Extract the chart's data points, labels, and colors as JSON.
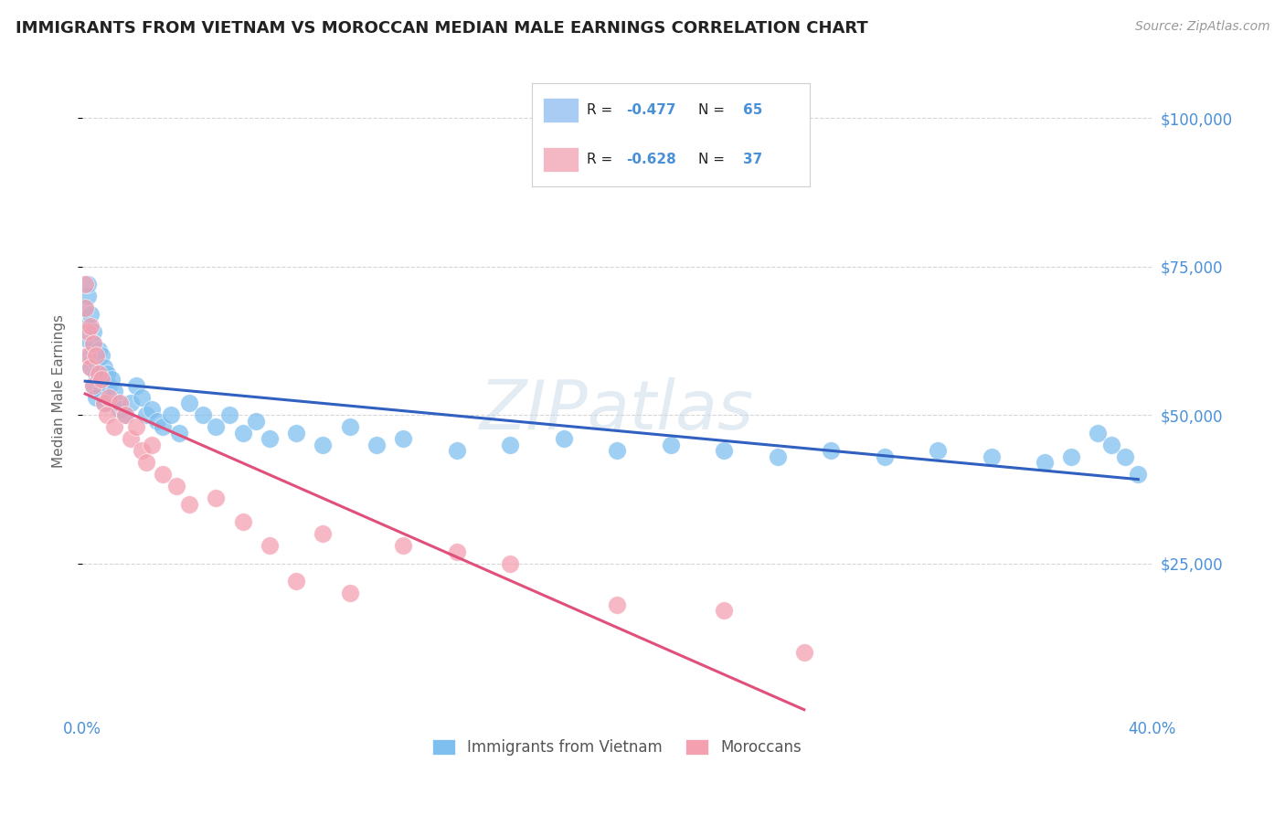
{
  "title": "IMMIGRANTS FROM VIETNAM VS MOROCCAN MEDIAN MALE EARNINGS CORRELATION CHART",
  "source": "Source: ZipAtlas.com",
  "ylabel": "Median Male Earnings",
  "ytick_values": [
    25000,
    50000,
    75000,
    100000
  ],
  "ytick_labels_right": [
    "$25,000",
    "$50,000",
    "$75,000",
    "$100,000"
  ],
  "watermark": "ZIPatlas",
  "legend_bottom": [
    "Immigrants from Vietnam",
    "Moroccans"
  ],
  "vietnam_color": "#7fbfef",
  "morocco_color": "#f4a0b0",
  "vietnam_line_color": "#3060c0",
  "morocco_line_color": "#e0507a",
  "legend_vietnam_fill": "#a8ccf4",
  "legend_morocco_fill": "#f4b8c4",
  "background_color": "#ffffff",
  "grid_color": "#cccccc",
  "title_color": "#222222",
  "axis_label_color": "#4a90d9",
  "vietnam_r": "-0.477",
  "vietnam_n": "65",
  "morocco_r": "-0.628",
  "morocco_n": "37",
  "vietnam_points_x": [
    0.001,
    0.001,
    0.002,
    0.002,
    0.002,
    0.003,
    0.003,
    0.003,
    0.004,
    0.004,
    0.004,
    0.005,
    0.005,
    0.005,
    0.006,
    0.006,
    0.007,
    0.007,
    0.008,
    0.008,
    0.009,
    0.01,
    0.011,
    0.012,
    0.013,
    0.014,
    0.016,
    0.018,
    0.02,
    0.022,
    0.024,
    0.026,
    0.028,
    0.03,
    0.033,
    0.036,
    0.04,
    0.045,
    0.05,
    0.055,
    0.06,
    0.065,
    0.07,
    0.08,
    0.09,
    0.1,
    0.11,
    0.12,
    0.14,
    0.16,
    0.18,
    0.2,
    0.22,
    0.24,
    0.26,
    0.28,
    0.3,
    0.32,
    0.34,
    0.36,
    0.37,
    0.38,
    0.385,
    0.39,
    0.395
  ],
  "vietnam_points_y": [
    63000,
    68000,
    70000,
    72000,
    65000,
    67000,
    60000,
    58000,
    64000,
    62000,
    55000,
    59000,
    57000,
    53000,
    61000,
    56000,
    60000,
    54000,
    58000,
    52000,
    57000,
    55000,
    56000,
    54000,
    52000,
    51000,
    50000,
    52000,
    55000,
    53000,
    50000,
    51000,
    49000,
    48000,
    50000,
    47000,
    52000,
    50000,
    48000,
    50000,
    47000,
    49000,
    46000,
    47000,
    45000,
    48000,
    45000,
    46000,
    44000,
    45000,
    46000,
    44000,
    45000,
    44000,
    43000,
    44000,
    43000,
    44000,
    43000,
    42000,
    43000,
    47000,
    45000,
    43000,
    40000
  ],
  "morocco_points_x": [
    0.001,
    0.001,
    0.002,
    0.002,
    0.003,
    0.003,
    0.004,
    0.004,
    0.005,
    0.006,
    0.007,
    0.008,
    0.009,
    0.01,
    0.012,
    0.014,
    0.016,
    0.018,
    0.02,
    0.022,
    0.024,
    0.026,
    0.03,
    0.035,
    0.04,
    0.05,
    0.06,
    0.07,
    0.08,
    0.09,
    0.1,
    0.12,
    0.14,
    0.16,
    0.2,
    0.24,
    0.27
  ],
  "morocco_points_y": [
    68000,
    72000,
    64000,
    60000,
    65000,
    58000,
    62000,
    55000,
    60000,
    57000,
    56000,
    52000,
    50000,
    53000,
    48000,
    52000,
    50000,
    46000,
    48000,
    44000,
    42000,
    45000,
    40000,
    38000,
    35000,
    36000,
    32000,
    28000,
    22000,
    30000,
    20000,
    28000,
    27000,
    25000,
    18000,
    17000,
    10000
  ],
  "xmin": 0.0,
  "xmax": 0.4,
  "ymin": 0,
  "ymax": 108000,
  "xtick_positions": [
    0.0,
    0.4
  ],
  "xtick_labels": [
    "0.0%",
    "40.0%"
  ]
}
